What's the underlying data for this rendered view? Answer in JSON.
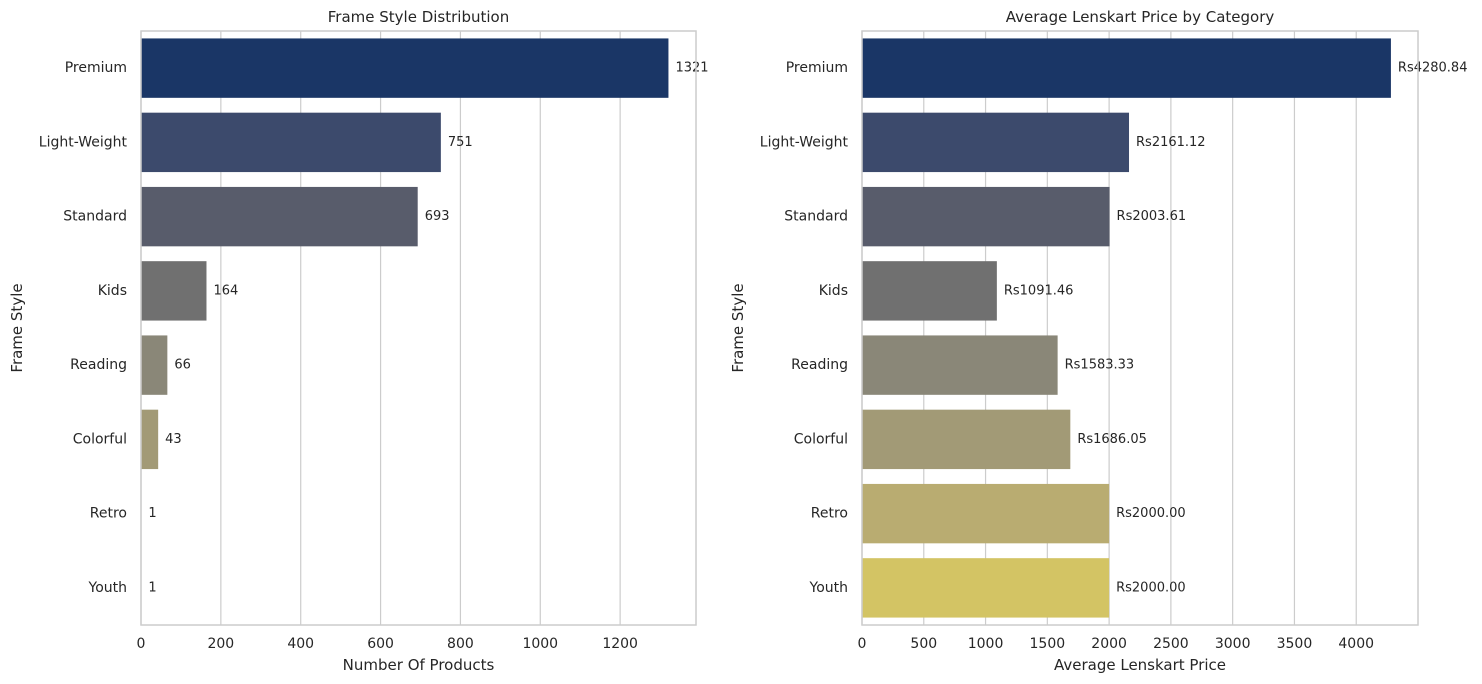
{
  "chart_data": [
    {
      "type": "bar",
      "orientation": "horizontal",
      "title": "Frame Style Distribution",
      "xlabel": "Number Of Products",
      "ylabel": "Frame Style",
      "categories": [
        "Premium",
        "Light-Weight",
        "Standard",
        "Kids",
        "Reading",
        "Colorful",
        "Retro",
        "Youth"
      ],
      "values": [
        1321,
        751,
        693,
        164,
        66,
        43,
        1,
        1
      ],
      "data_labels": [
        "1321",
        "751",
        "693",
        "164",
        "66",
        "43",
        "1",
        "1"
      ],
      "xlim": [
        0,
        1390
      ],
      "xticks": [
        0,
        200,
        400,
        600,
        800,
        1000,
        1200
      ],
      "xtick_labels": [
        "0",
        "200",
        "400",
        "600",
        "800",
        "1000",
        "1200"
      ],
      "grid": "vertical",
      "colors": [
        "#1a3666",
        "#3c4a6c",
        "#585c6b",
        "#707070",
        "#8a8778",
        "#a29a76",
        "#b9ac71",
        "#d3c464"
      ]
    },
    {
      "type": "bar",
      "orientation": "horizontal",
      "title": "Average Lenskart Price by Category",
      "xlabel": "Average Lenskart Price",
      "ylabel": "Frame Style",
      "categories": [
        "Premium",
        "Light-Weight",
        "Standard",
        "Kids",
        "Reading",
        "Colorful",
        "Retro",
        "Youth"
      ],
      "values": [
        4280.84,
        2161.12,
        2003.61,
        1091.46,
        1583.33,
        1686.05,
        2000.0,
        2000.0
      ],
      "data_labels": [
        "Rs4280.84",
        "Rs2161.12",
        "Rs2003.61",
        "Rs1091.46",
        "Rs1583.33",
        "Rs1686.05",
        "Rs2000.00",
        "Rs2000.00"
      ],
      "xlim": [
        0,
        4500
      ],
      "xticks": [
        0,
        500,
        1000,
        1500,
        2000,
        2500,
        3000,
        3500,
        4000
      ],
      "xtick_labels": [
        "0",
        "500",
        "1000",
        "1500",
        "2000",
        "2500",
        "3000",
        "3500",
        "4000"
      ],
      "grid": "vertical",
      "colors": [
        "#1a3666",
        "#3c4a6c",
        "#585c6b",
        "#707070",
        "#8a8778",
        "#a29a76",
        "#b9ac71",
        "#d3c464"
      ]
    }
  ]
}
